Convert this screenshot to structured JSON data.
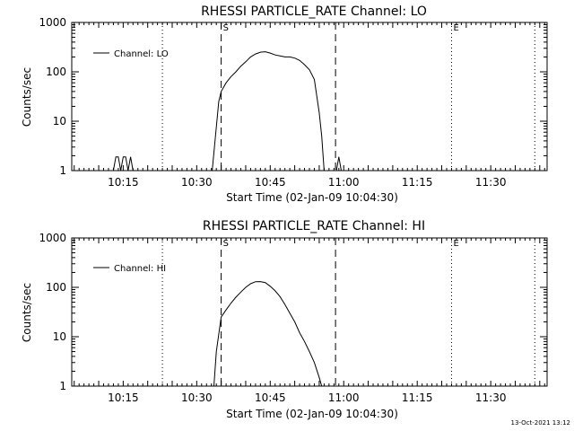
{
  "footer": {
    "timestamp": "13-Oct-2021 13:12"
  },
  "chart_data": [
    {
      "type": "line",
      "title": "RHESSI PARTICLE_RATE Channel: LO",
      "xlabel": "Start Time (02-Jan-09 10:04:30)",
      "ylabel": "Counts/sec",
      "yscale": "log",
      "ylim": [
        1,
        1000
      ],
      "xlim": [
        "10:04:30",
        "11:41:30"
      ],
      "x_ticks": [
        "10:15",
        "10:30",
        "10:45",
        "11:00",
        "11:15",
        "11:30"
      ],
      "y_ticks": [
        "1",
        "10",
        "100",
        "1000"
      ],
      "legend": {
        "position": "top-left",
        "entries": [
          "Channel: LO"
        ]
      },
      "grid": false,
      "markers": [
        {
          "label": "S",
          "time": "10:35:00",
          "style": "dashed"
        },
        {
          "label": "",
          "time": "10:58:20",
          "style": "dashed"
        },
        {
          "label": "E",
          "time": "11:22:00",
          "style": "dotted"
        },
        {
          "label": "",
          "time": "10:23:00",
          "style": "dotted"
        },
        {
          "label": "",
          "time": "11:39:00",
          "style": "dotted"
        }
      ],
      "series": [
        {
          "name": "Channel: LO",
          "x": [
            "10:13:00",
            "10:13:30",
            "10:14:00",
            "10:14:30",
            "10:15:00",
            "10:15:30",
            "10:16:00",
            "10:16:30",
            "10:17:00",
            "10:33:10",
            "10:34:30",
            "10:35:00",
            "10:36:00",
            "10:37:00",
            "10:38:00",
            "10:39:00",
            "10:40:00",
            "10:41:00",
            "10:42:00",
            "10:43:00",
            "10:44:00",
            "10:45:00",
            "10:46:00",
            "10:47:00",
            "10:48:00",
            "10:49:00",
            "10:50:00",
            "10:51:00",
            "10:52:00",
            "10:53:00",
            "10:54:00",
            "10:55:00",
            "10:55:30",
            "10:56:00",
            "10:57:00",
            "10:58:30",
            "10:59:00",
            "10:59:30"
          ],
          "y": [
            1,
            1.9,
            1.9,
            1,
            1.9,
            1.9,
            1,
            1.9,
            1,
            1,
            25,
            40,
            60,
            80,
            100,
            130,
            160,
            200,
            230,
            250,
            255,
            240,
            220,
            210,
            200,
            200,
            190,
            170,
            140,
            110,
            70,
            15,
            5,
            1,
            1,
            1,
            1.9,
            1
          ]
        }
      ]
    },
    {
      "type": "line",
      "title": "RHESSI PARTICLE_RATE Channel: HI",
      "xlabel": "Start Time (02-Jan-09 10:04:30)",
      "ylabel": "Counts/sec",
      "yscale": "log",
      "ylim": [
        1,
        1000
      ],
      "xlim": [
        "10:04:30",
        "11:41:30"
      ],
      "x_ticks": [
        "10:15",
        "10:30",
        "10:45",
        "11:00",
        "11:15",
        "11:30"
      ],
      "y_ticks": [
        "1",
        "10",
        "100",
        "1000"
      ],
      "legend": {
        "position": "top-left",
        "entries": [
          "Channel: HI"
        ]
      },
      "grid": false,
      "markers": [
        {
          "label": "S",
          "time": "10:35:00",
          "style": "dashed"
        },
        {
          "label": "",
          "time": "10:58:20",
          "style": "dashed"
        },
        {
          "label": "E",
          "time": "11:22:00",
          "style": "dotted"
        },
        {
          "label": "",
          "time": "10:23:00",
          "style": "dotted"
        },
        {
          "label": "",
          "time": "11:39:00",
          "style": "dotted"
        }
      ],
      "series": [
        {
          "name": "Channel: HI",
          "x": [
            "10:33:30",
            "10:34:00",
            "10:35:00",
            "10:36:00",
            "10:37:00",
            "10:38:00",
            "10:39:00",
            "10:40:00",
            "10:41:00",
            "10:42:00",
            "10:43:00",
            "10:44:00",
            "10:45:00",
            "10:46:00",
            "10:47:00",
            "10:48:00",
            "10:49:00",
            "10:50:00",
            "10:51:00",
            "10:52:00",
            "10:53:00",
            "10:54:00",
            "10:55:00",
            "10:55:30"
          ],
          "y": [
            1,
            5,
            25,
            35,
            48,
            63,
            80,
            100,
            118,
            130,
            131,
            125,
            105,
            85,
            65,
            45,
            30,
            20,
            12,
            8,
            5,
            3,
            1.5,
            1
          ]
        }
      ]
    }
  ]
}
